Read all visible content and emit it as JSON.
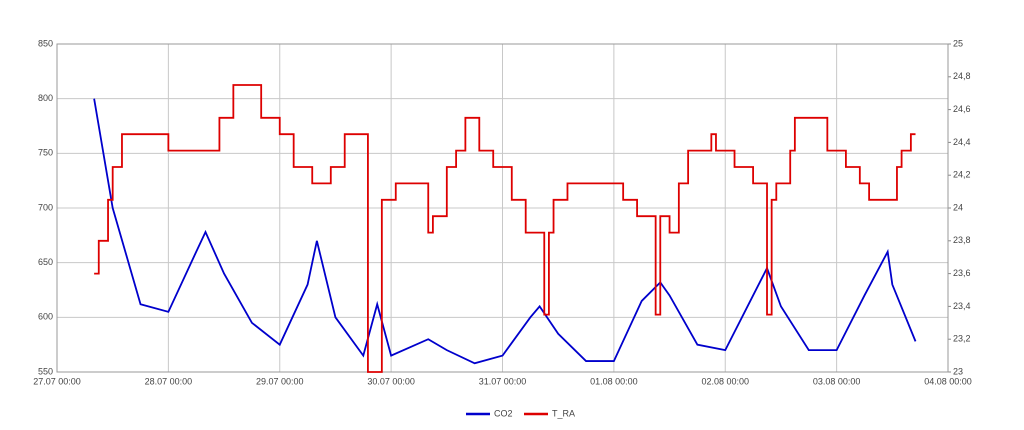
{
  "chart_data": {
    "type": "line",
    "xlim": [
      "27.07 00:00",
      "04.08 00:00"
    ],
    "xticks": [
      "27.07 00:00",
      "28.07 00:00",
      "29.07 00:00",
      "30.07 00:00",
      "31.07 00:00",
      "01.08 00:00",
      "02.08 00:00",
      "03.08 00:00",
      "04.08 00:00"
    ],
    "ylim": [
      550,
      850
    ],
    "yticks": [
      550,
      600,
      650,
      700,
      750,
      800,
      850
    ],
    "y2lim": [
      23,
      25
    ],
    "y2ticks": [
      23,
      {
        "value": 23.2,
        "label": "23,2"
      },
      {
        "value": 23.4,
        "label": "23,4"
      },
      {
        "value": 23.6,
        "label": "23,6"
      },
      {
        "value": 23.8,
        "label": "23,8"
      },
      24,
      {
        "value": 24.2,
        "label": "24,2"
      },
      {
        "value": 24.4,
        "label": "24,4"
      },
      {
        "value": 24.6,
        "label": "24,6"
      },
      {
        "value": 24.8,
        "label": "24,8"
      },
      25
    ],
    "grid": true,
    "legend": "bottom",
    "series": [
      {
        "name": "CO2",
        "color": "#0000cc",
        "x": [
          "27.07 08:00",
          "27.07 12:00",
          "27.07 18:00",
          "28.07 00:00",
          "28.07 06:00",
          "28.07 08:00",
          "28.07 12:00",
          "28.07 18:00",
          "29.07 00:00",
          "29.07 06:00",
          "29.07 08:00",
          "29.07 12:00",
          "29.07 18:00",
          "29.07 21:00",
          "30.07 00:00",
          "30.07 08:00",
          "30.07 12:00",
          "30.07 18:00",
          "31.07 00:00",
          "31.07 06:00",
          "31.07 08:00",
          "31.07 12:00",
          "31.07 18:00",
          "01.08 00:00",
          "01.08 06:00",
          "01.08 10:00",
          "01.08 12:00",
          "01.08 18:00",
          "02.08 00:00",
          "02.08 06:00",
          "02.08 09:00",
          "02.08 12:00",
          "02.08 18:00",
          "03.08 00:00",
          "03.08 06:00",
          "03.08 11:00",
          "03.08 12:00",
          "03.08 17:00"
        ],
        "values": [
          800,
          700,
          612,
          605,
          660,
          678,
          640,
          595,
          575,
          630,
          670,
          600,
          565,
          612,
          565,
          580,
          570,
          558,
          565,
          600,
          610,
          585,
          560,
          560,
          615,
          632,
          620,
          575,
          570,
          620,
          645,
          610,
          570,
          570,
          620,
          660,
          630,
          578
        ]
      },
      {
        "name": "T_RA",
        "color": "#dd0000",
        "axis": "y2",
        "step": "post",
        "x": [
          "27.07 08:00",
          "27.07 09:00",
          "27.07 11:00",
          "27.07 12:00",
          "27.07 14:00",
          "28.07 00:00",
          "28.07 11:00",
          "28.07 14:00",
          "28.07 20:00",
          "29.07 00:00",
          "29.07 03:00",
          "29.07 07:00",
          "29.07 11:00",
          "29.07 14:00",
          "29.07 19:00",
          "29.07 22:00",
          "30.07 01:00",
          "30.07 08:00",
          "30.07 09:00",
          "30.07 12:00",
          "30.07 14:00",
          "30.07 16:00",
          "30.07 19:00",
          "30.07 22:00",
          "31.07 02:00",
          "31.07 05:00",
          "31.07 09:00",
          "31.07 10:00",
          "31.07 11:00",
          "31.07 14:00",
          "01.08 02:00",
          "01.08 05:00",
          "01.08 09:00",
          "01.08 10:00",
          "01.08 12:00",
          "01.08 14:00",
          "01.08 16:00",
          "01.08 21:00",
          "01.08 22:00",
          "02.08 02:00",
          "02.08 06:00",
          "02.08 09:00",
          "02.08 10:00",
          "02.08 11:00",
          "02.08 14:00",
          "02.08 15:00",
          "02.08 22:00",
          "03.08 02:00",
          "03.08 05:00",
          "03.08 07:00",
          "03.08 13:00",
          "03.08 14:00",
          "03.08 16:00",
          "03.08 17:00"
        ],
        "values": [
          23.6,
          23.8,
          24.05,
          24.25,
          24.45,
          24.35,
          24.55,
          24.75,
          24.55,
          24.45,
          24.25,
          24.15,
          24.25,
          24.45,
          23.0,
          24.05,
          24.15,
          23.85,
          23.95,
          24.25,
          24.35,
          24.55,
          24.35,
          24.25,
          24.05,
          23.85,
          23.35,
          23.85,
          24.05,
          24.15,
          24.05,
          23.95,
          23.35,
          23.95,
          23.85,
          24.15,
          24.35,
          24.45,
          24.35,
          24.25,
          24.15,
          23.35,
          24.05,
          24.15,
          24.35,
          24.55,
          24.35,
          24.25,
          24.15,
          24.05,
          24.25,
          24.35,
          24.45,
          24.45
        ]
      }
    ]
  }
}
